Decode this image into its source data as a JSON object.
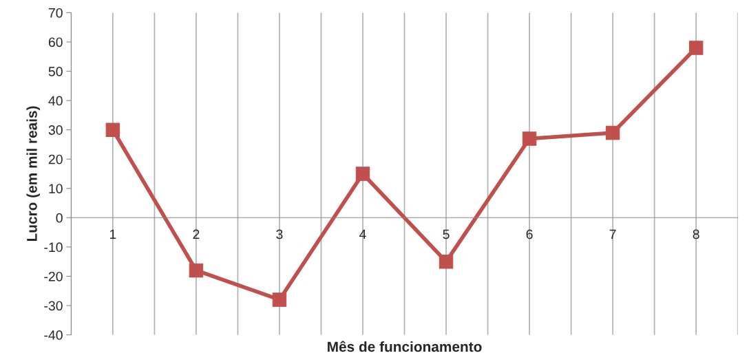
{
  "chart_data": {
    "type": "line",
    "xlabel": "Mês de funcionamento",
    "ylabel": "Lucro (em mil reais)",
    "categories": [
      "1",
      "2",
      "3",
      "4",
      "5",
      "6",
      "7",
      "8"
    ],
    "series": [
      {
        "color": "#c0504d",
        "values": [
          30,
          -18,
          -28,
          15,
          -15,
          27,
          29,
          58
        ]
      }
    ],
    "ylim": [
      -40,
      70
    ],
    "yticks": [
      -40,
      -30,
      -20,
      -10,
      0,
      10,
      20,
      30,
      40,
      50,
      60,
      70
    ],
    "grid": "x",
    "legend": false,
    "marker": "square",
    "line_style": "solid"
  }
}
